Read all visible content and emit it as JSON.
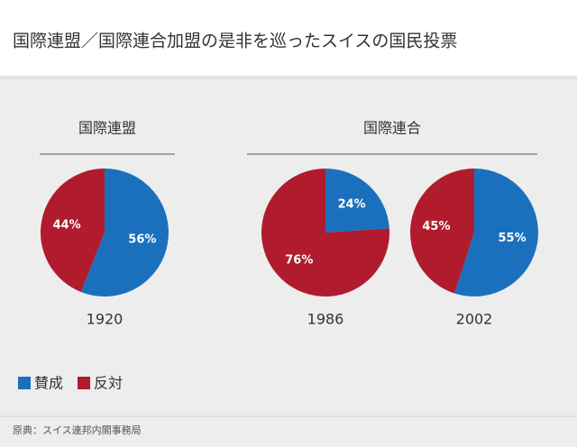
{
  "title": "国際連盟／国際連合加盟の是非を巡ったスイスの国民投票",
  "groups": [
    {
      "title": "国際連盟"
    },
    {
      "title": "国際連合"
    }
  ],
  "chart_data": [
    {
      "type": "pie",
      "title": "1920",
      "categories": [
        "賛成",
        "反対"
      ],
      "colors": [
        "#1b70bd",
        "#b01c2e"
      ],
      "values": [
        56,
        44
      ],
      "value_labels": [
        "56%",
        "44%"
      ]
    },
    {
      "type": "pie",
      "title": "1986",
      "categories": [
        "賛成",
        "反対"
      ],
      "colors": [
        "#1b70bd",
        "#b01c2e"
      ],
      "values": [
        24,
        76
      ],
      "value_labels": [
        "24%",
        "76%"
      ]
    },
    {
      "type": "pie",
      "title": "2002",
      "categories": [
        "賛成",
        "反対"
      ],
      "colors": [
        "#1b70bd",
        "#b01c2e"
      ],
      "values": [
        55,
        45
      ],
      "value_labels": [
        "55%",
        "45%"
      ]
    }
  ],
  "source": "原典：スイス連邦内閣事務局"
}
